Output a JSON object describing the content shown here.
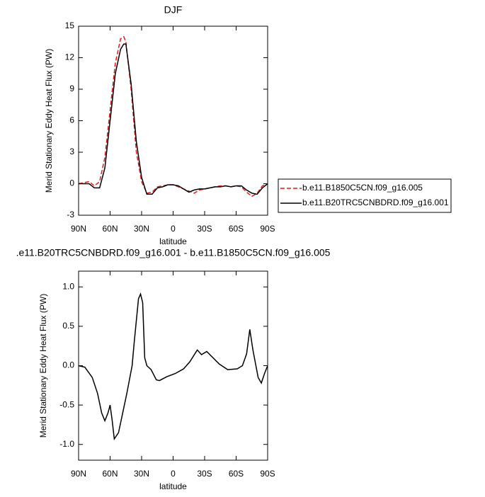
{
  "chart_data": [
    {
      "type": "line",
      "title": "DJF",
      "x_label": "latitude",
      "y_label": "Merid Stationary Eddy Heat Flux (PW)",
      "x": [
        90,
        85,
        80,
        75,
        70,
        65,
        60,
        55,
        50,
        47,
        45,
        40,
        35,
        30,
        25,
        20,
        15,
        10,
        5,
        0,
        -5,
        -10,
        -15,
        -20,
        -25,
        -30,
        -35,
        -40,
        -45,
        -50,
        -55,
        -60,
        -65,
        -70,
        -75,
        -80,
        -85,
        -90
      ],
      "series": [
        {
          "name": "b.e11.B1850C5CN.f09_g16.005",
          "color": "#e41a1c",
          "dashed": true,
          "values": [
            0,
            0.1,
            0.2,
            -0.2,
            0.2,
            2.5,
            7,
            11.5,
            13.8,
            14,
            13.5,
            9,
            3,
            0.2,
            -0.9,
            -0.8,
            -0.3,
            -0.2,
            -0.1,
            -0.1,
            -0.3,
            -0.5,
            -0.7,
            -0.9,
            -0.6,
            -0.5,
            -0.4,
            -0.3,
            -0.2,
            -0.2,
            -0.3,
            -0.2,
            -0.3,
            -0.8,
            -1.2,
            -0.9,
            -0.2,
            0
          ]
        },
        {
          "name": "b.e11.B20TRC5CNBDRD.f09_g16.001",
          "color": "#000000",
          "dashed": false,
          "values": [
            0,
            0,
            0,
            -0.4,
            -0.4,
            1.5,
            6,
            10.5,
            12.8,
            13.3,
            13.3,
            9.5,
            4,
            0.6,
            -1,
            -1,
            -0.4,
            -0.3,
            -0.1,
            -0.1,
            -0.2,
            -0.5,
            -0.8,
            -0.6,
            -0.5,
            -0.5,
            -0.4,
            -0.3,
            -0.3,
            -0.2,
            -0.3,
            -0.2,
            -0.2,
            -0.6,
            -0.9,
            -1,
            -0.4,
            0
          ]
        }
      ],
      "xlim": [
        90,
        -90
      ],
      "xticks": [
        {
          "value": 90,
          "label": "90N"
        },
        {
          "value": 60,
          "label": "60N"
        },
        {
          "value": 30,
          "label": "30N"
        },
        0,
        {
          "value": -30,
          "label": "30S"
        },
        {
          "value": -60,
          "label": "60S"
        },
        {
          "value": -90,
          "label": "90S"
        }
      ],
      "ylim": [
        -3,
        15
      ],
      "yticks": [
        -3,
        0,
        3,
        6,
        9,
        12,
        15
      ],
      "legend": "right"
    },
    {
      "type": "line",
      "title": ".e11.B20TRC5CNBDRD.f09_g16.001 - b.e11.B1850C5CN.f09_g16.005",
      "x_label": "latitude",
      "y_label": "Merid Stationary Eddy Heat Flux (PW)",
      "x": [
        90,
        84,
        77,
        72,
        68,
        65,
        62,
        60,
        58,
        56,
        52,
        48,
        44,
        39,
        37,
        33,
        31,
        29,
        27,
        25,
        21,
        16,
        13,
        6,
        -2,
        -10,
        -16,
        -23,
        -27,
        -32,
        -38,
        -44,
        -52,
        -61,
        -66,
        -70,
        -73,
        -76,
        -81,
        -84,
        -87,
        -90
      ],
      "series": [
        {
          "color": "#000000",
          "dashed": false,
          "values": [
            0,
            -0.02,
            -0.15,
            -0.35,
            -0.6,
            -0.7,
            -0.6,
            -0.5,
            -0.7,
            -0.93,
            -0.85,
            -0.6,
            -0.35,
            0,
            0.3,
            0.85,
            0.91,
            0.8,
            0.1,
            0,
            -0.05,
            -0.18,
            -0.19,
            -0.14,
            -0.1,
            -0.04,
            0.05,
            0.2,
            0.14,
            0.18,
            0.1,
            0.02,
            -0.05,
            -0.04,
            0,
            0.15,
            0.46,
            0.2,
            -0.15,
            -0.22,
            -0.1,
            0
          ]
        }
      ],
      "xlim": [
        90,
        -90
      ],
      "xticks": [
        {
          "value": 90,
          "label": "90N"
        },
        {
          "value": 60,
          "label": "60N"
        },
        {
          "value": 30,
          "label": "30N"
        },
        0,
        {
          "value": -30,
          "label": "30S"
        },
        {
          "value": -60,
          "label": "60S"
        },
        {
          "value": -90,
          "label": "90S"
        }
      ],
      "ylim": [
        -1.2,
        1.2
      ],
      "yticks": [
        {
          "value": -1,
          "label": "-1.0"
        },
        {
          "value": -0.5,
          "label": "-0.5"
        },
        {
          "value": 0,
          "label": "0.0"
        },
        {
          "value": 0.5,
          "label": "0.5"
        },
        {
          "value": 1,
          "label": "1.0"
        }
      ]
    }
  ]
}
